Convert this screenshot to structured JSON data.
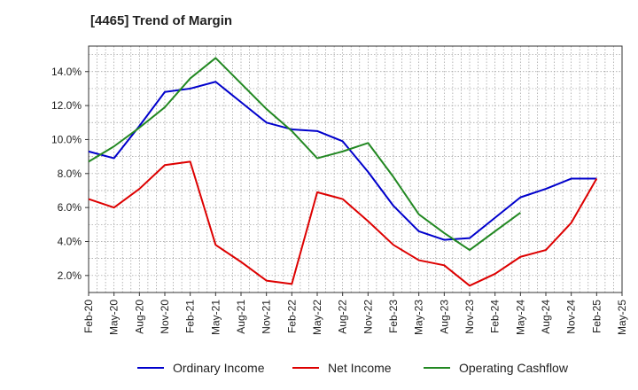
{
  "chart_data": {
    "type": "line",
    "title": "[4465]  Trend of Margin",
    "xlabel": "",
    "ylabel": "",
    "x": [
      "Feb-20",
      "May-20",
      "Aug-20",
      "Nov-20",
      "Feb-21",
      "May-21",
      "Aug-21",
      "Nov-21",
      "Feb-22",
      "May-22",
      "Aug-22",
      "Nov-22",
      "Feb-23",
      "May-23",
      "Aug-23",
      "Nov-23",
      "Feb-24",
      "May-24",
      "Aug-24",
      "Nov-24",
      "Feb-25",
      "May-25"
    ],
    "ylim": [
      1.0,
      15.5
    ],
    "yticks": [
      2.0,
      4.0,
      6.0,
      8.0,
      10.0,
      12.0,
      14.0
    ],
    "ytick_labels": [
      "2.0%",
      "4.0%",
      "6.0%",
      "8.0%",
      "10.0%",
      "12.0%",
      "14.0%"
    ],
    "grid": true,
    "legend_position": "bottom",
    "series": [
      {
        "name": "Ordinary Income",
        "color": "#0000cc",
        "values": [
          9.3,
          8.9,
          10.8,
          12.8,
          13.0,
          13.4,
          12.2,
          11.0,
          10.6,
          10.5,
          9.9,
          8.1,
          6.1,
          4.6,
          4.1,
          4.2,
          5.4,
          6.6,
          7.1,
          7.7,
          7.7,
          null
        ]
      },
      {
        "name": "Net Income",
        "color": "#dd0000",
        "values": [
          6.5,
          6.0,
          7.1,
          8.5,
          8.7,
          3.8,
          2.8,
          1.7,
          1.5,
          6.9,
          6.5,
          5.2,
          3.8,
          2.9,
          2.6,
          1.4,
          2.1,
          3.1,
          3.5,
          5.1,
          7.7,
          null
        ]
      },
      {
        "name": "Operating Cashflow",
        "color": "#228822",
        "values": [
          8.7,
          9.6,
          10.7,
          11.9,
          13.6,
          14.8,
          13.3,
          11.8,
          10.5,
          8.9,
          9.3,
          9.8,
          7.8,
          5.6,
          4.5,
          3.5,
          4.6,
          5.7,
          null,
          null,
          null,
          null
        ]
      }
    ]
  }
}
